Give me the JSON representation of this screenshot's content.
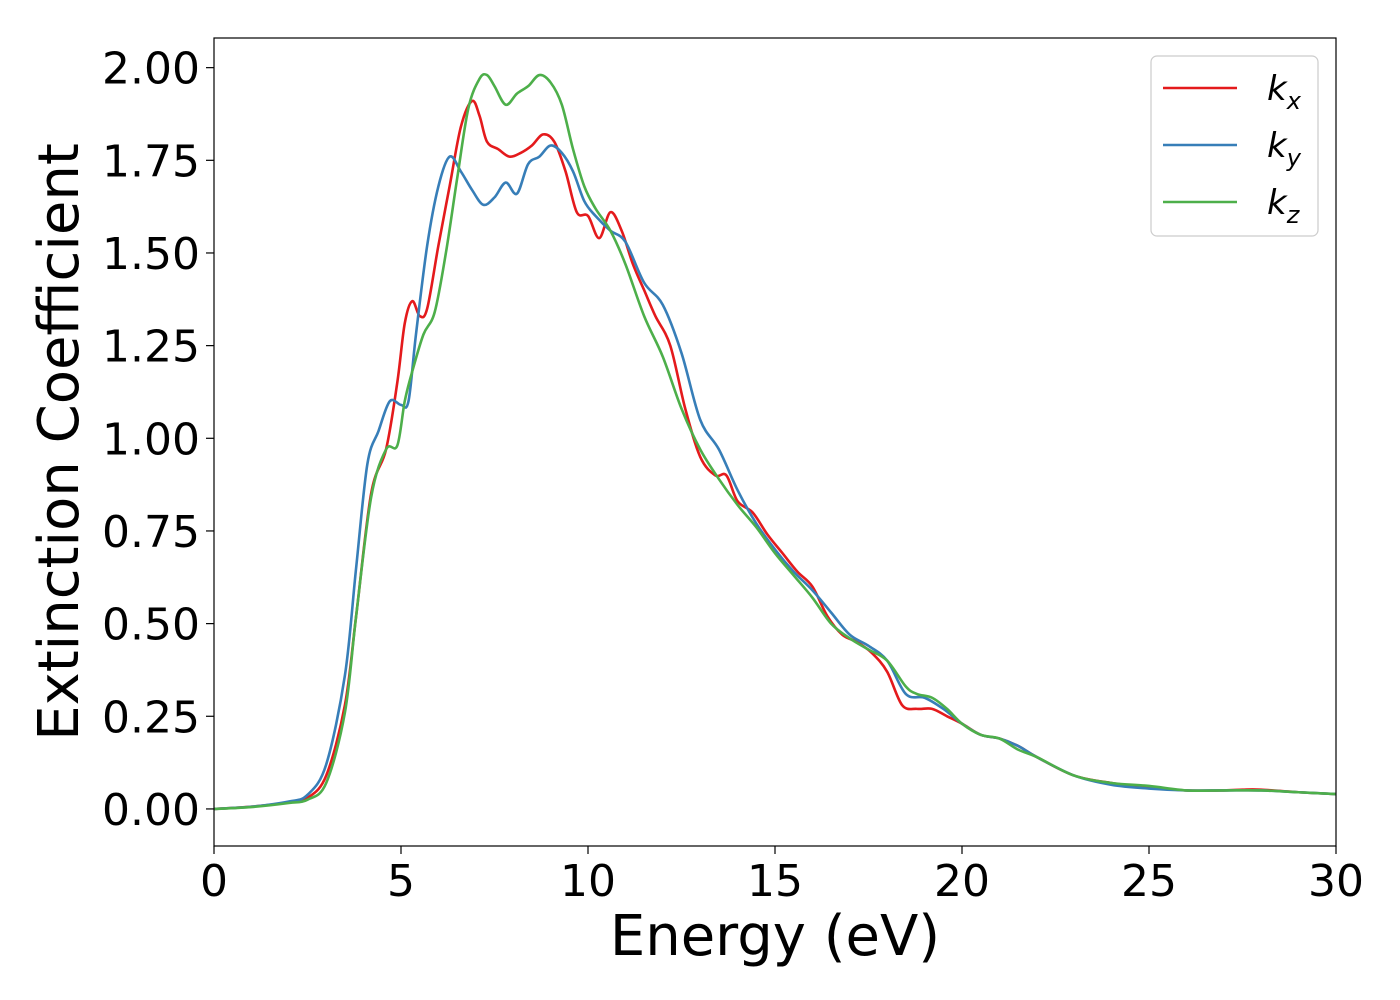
{
  "chart_data": {
    "type": "line",
    "title": "",
    "xlabel": "Energy (eV)",
    "ylabel": "Extinction Coefficient",
    "xlim": [
      0,
      30
    ],
    "ylim": [
      -0.1,
      2.08
    ],
    "xticks": [
      0,
      5,
      10,
      15,
      20,
      25,
      30
    ],
    "xtick_labels": [
      "0",
      "5",
      "10",
      "15",
      "20",
      "25",
      "30"
    ],
    "yticks": [
      0,
      0.25,
      0.5,
      0.75,
      1.0,
      1.25,
      1.5,
      1.75,
      2.0
    ],
    "ytick_labels": [
      "0.00",
      "0.25",
      "0.50",
      "0.75",
      "1.00",
      "1.25",
      "1.50",
      "1.75",
      "2.00"
    ],
    "grid": false,
    "legend_position": "top-right",
    "series": [
      {
        "name": "k_x",
        "label_main": "k",
        "label_sub": "x",
        "color": "#e41a1c",
        "x": [
          0,
          1,
          2,
          2.5,
          3,
          3.5,
          3.8,
          4.2,
          4.6,
          4.9,
          5.1,
          5.3,
          5.5,
          5.7,
          6.0,
          6.3,
          6.6,
          6.9,
          7.1,
          7.3,
          7.6,
          7.9,
          8.2,
          8.5,
          8.8,
          9.1,
          9.4,
          9.7,
          10.0,
          10.3,
          10.6,
          10.9,
          11.2,
          11.5,
          11.8,
          12.2,
          12.6,
          13.0,
          13.4,
          13.7,
          14.0,
          14.4,
          14.8,
          15.2,
          15.6,
          16.0,
          16.4,
          16.8,
          17.2,
          17.6,
          18.0,
          18.4,
          18.8,
          19.2,
          19.6,
          20.0,
          20.5,
          21.0,
          21.5,
          22.0,
          23.0,
          24.0,
          25.0,
          26.0,
          27.0,
          27.5,
          28.0,
          29.0,
          30.0
        ],
        "y": [
          0,
          0.006,
          0.018,
          0.03,
          0.09,
          0.28,
          0.52,
          0.85,
          0.97,
          1.15,
          1.31,
          1.37,
          1.33,
          1.35,
          1.52,
          1.68,
          1.84,
          1.91,
          1.87,
          1.8,
          1.78,
          1.76,
          1.77,
          1.79,
          1.82,
          1.8,
          1.72,
          1.61,
          1.6,
          1.54,
          1.61,
          1.56,
          1.47,
          1.4,
          1.33,
          1.25,
          1.08,
          0.95,
          0.9,
          0.9,
          0.83,
          0.8,
          0.74,
          0.69,
          0.64,
          0.6,
          0.52,
          0.47,
          0.45,
          0.42,
          0.37,
          0.28,
          0.27,
          0.27,
          0.25,
          0.23,
          0.2,
          0.19,
          0.17,
          0.14,
          0.09,
          0.07,
          0.058,
          0.05,
          0.05,
          0.052,
          0.052,
          0.045,
          0.04
        ]
      },
      {
        "name": "k_y",
        "label_main": "k",
        "label_sub": "y",
        "color": "#377eb8",
        "x": [
          0,
          1,
          2,
          2.5,
          3,
          3.5,
          3.8,
          4.1,
          4.4,
          4.7,
          5.0,
          5.2,
          5.4,
          5.7,
          6.0,
          6.3,
          6.6,
          6.9,
          7.2,
          7.5,
          7.8,
          8.1,
          8.4,
          8.7,
          9.0,
          9.3,
          9.6,
          9.9,
          10.2,
          10.6,
          11.0,
          11.5,
          12.0,
          12.5,
          13.0,
          13.5,
          14.0,
          14.5,
          15.0,
          15.5,
          16.0,
          16.5,
          17.0,
          17.5,
          18.0,
          18.5,
          19.0,
          19.5,
          20.0,
          20.5,
          21.0,
          21.5,
          22.0,
          23.0,
          24.0,
          25.0,
          26.0,
          27.0,
          28.0,
          29.0,
          30.0
        ],
        "y": [
          0,
          0.006,
          0.02,
          0.038,
          0.12,
          0.36,
          0.65,
          0.93,
          1.02,
          1.1,
          1.09,
          1.1,
          1.28,
          1.52,
          1.68,
          1.76,
          1.72,
          1.67,
          1.63,
          1.65,
          1.69,
          1.66,
          1.74,
          1.76,
          1.79,
          1.77,
          1.72,
          1.64,
          1.6,
          1.56,
          1.53,
          1.42,
          1.36,
          1.23,
          1.05,
          0.97,
          0.86,
          0.77,
          0.7,
          0.64,
          0.59,
          0.53,
          0.47,
          0.44,
          0.4,
          0.31,
          0.3,
          0.27,
          0.23,
          0.2,
          0.19,
          0.17,
          0.14,
          0.09,
          0.065,
          0.055,
          0.05,
          0.05,
          0.05,
          0.045,
          0.04
        ]
      },
      {
        "name": "k_z",
        "label_main": "k",
        "label_sub": "z",
        "color": "#4daf4a",
        "x": [
          0,
          1,
          2,
          2.5,
          3,
          3.5,
          3.8,
          4.2,
          4.6,
          4.9,
          5.1,
          5.3,
          5.6,
          5.9,
          6.2,
          6.5,
          6.8,
          7.1,
          7.3,
          7.5,
          7.8,
          8.1,
          8.4,
          8.7,
          9.0,
          9.3,
          9.6,
          9.9,
          10.2,
          10.6,
          11.0,
          11.5,
          12.0,
          12.5,
          13.0,
          13.5,
          14.0,
          14.5,
          15.0,
          15.5,
          16.0,
          16.5,
          17.0,
          17.5,
          18.0,
          18.5,
          18.8,
          19.2,
          19.6,
          20.0,
          20.5,
          21.0,
          21.5,
          22.0,
          23.0,
          24.0,
          25.0,
          26.0,
          27.0,
          28.0,
          29.0,
          30.0
        ],
        "y": [
          0,
          0.005,
          0.016,
          0.025,
          0.07,
          0.26,
          0.52,
          0.84,
          0.97,
          0.98,
          1.1,
          1.18,
          1.28,
          1.34,
          1.5,
          1.7,
          1.89,
          1.97,
          1.98,
          1.95,
          1.9,
          1.93,
          1.95,
          1.98,
          1.96,
          1.9,
          1.78,
          1.68,
          1.62,
          1.56,
          1.47,
          1.33,
          1.22,
          1.08,
          0.97,
          0.89,
          0.82,
          0.76,
          0.69,
          0.63,
          0.57,
          0.5,
          0.46,
          0.43,
          0.4,
          0.33,
          0.31,
          0.3,
          0.27,
          0.23,
          0.2,
          0.19,
          0.16,
          0.14,
          0.09,
          0.07,
          0.062,
          0.05,
          0.05,
          0.05,
          0.045,
          0.04
        ]
      }
    ]
  }
}
